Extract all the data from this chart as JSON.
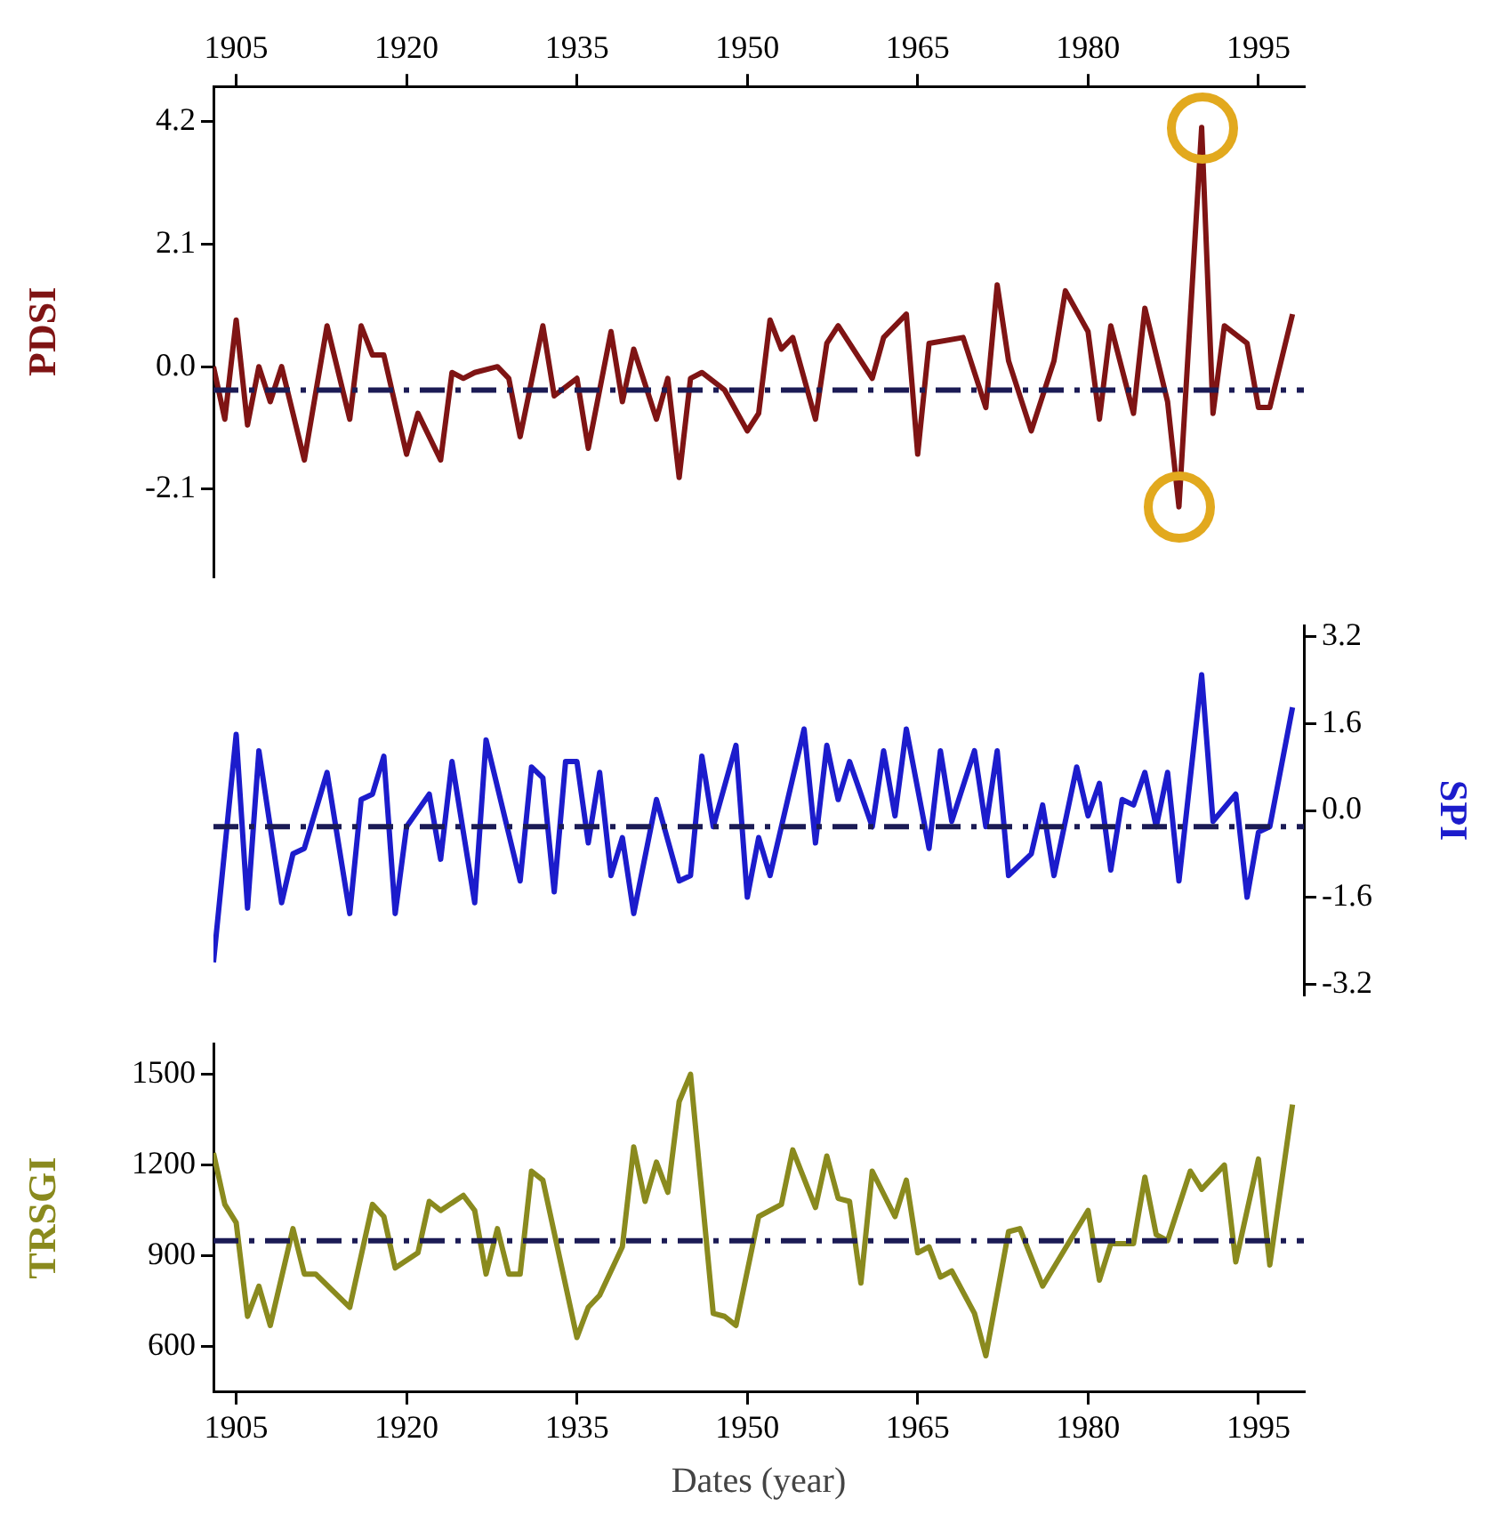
{
  "chart_data": [
    {
      "type": "line",
      "ylabel": "PDSI",
      "xlim": [
        1903,
        1999
      ],
      "xticks": [
        1905,
        1920,
        1935,
        1950,
        1965,
        1980,
        1995
      ],
      "ylim": [
        -3.6,
        4.8
      ],
      "yticks": [
        -2.1,
        {
          "value": 0,
          "label": "0.0"
        },
        2.1,
        4.2
      ],
      "grid": false,
      "series": [
        {
          "color": "#7f1414",
          "x": [
            1903,
            1904,
            1905,
            1906,
            1907,
            1908,
            1909,
            1911,
            1913,
            1915,
            1916,
            1917,
            1918,
            1920,
            1921,
            1923,
            1924,
            1925,
            1926,
            1928,
            1929,
            1930,
            1932,
            1933,
            1935,
            1936,
            1938,
            1939,
            1940,
            1942,
            1943,
            1944,
            1945,
            1946,
            1948,
            1950,
            1951,
            1952,
            1953,
            1954,
            1956,
            1957,
            1958,
            1961,
            1962,
            1964,
            1965,
            1966,
            1969,
            1971,
            1972,
            1973,
            1975,
            1977,
            1978,
            1980,
            1981,
            1982,
            1984,
            1985,
            1987,
            1988,
            1990,
            1991,
            1992,
            1994,
            1995,
            1996,
            1998
          ],
          "values": [
            0.0,
            -0.9,
            0.8,
            -1.0,
            0.0,
            -0.6,
            0.0,
            -1.6,
            0.7,
            -0.9,
            0.7,
            0.2,
            0.2,
            -1.5,
            -0.8,
            -1.6,
            -0.1,
            -0.2,
            -0.1,
            0.0,
            -0.2,
            -1.2,
            0.7,
            -0.5,
            -0.2,
            -1.4,
            0.6,
            -0.6,
            0.3,
            -0.9,
            -0.2,
            -1.9,
            -0.2,
            -0.1,
            -0.4,
            -1.1,
            -0.8,
            0.8,
            0.3,
            0.5,
            -0.9,
            0.4,
            0.7,
            -0.2,
            0.5,
            0.9,
            -1.5,
            0.4,
            0.5,
            -0.7,
            1.4,
            0.1,
            -1.1,
            0.1,
            1.3,
            0.6,
            -0.9,
            0.7,
            -0.8,
            1.0,
            -0.6,
            -2.4,
            4.1,
            -0.8,
            0.7,
            0.4,
            -0.7,
            -0.7,
            0.9
          ]
        }
      ],
      "ref_lines": [
        {
          "axis": "y",
          "value": -0.4,
          "color": "#1b1b55",
          "line_style": "dashed"
        }
      ]
    },
    {
      "type": "line",
      "y2label": "SPI",
      "xlim": [
        1903,
        1999
      ],
      "y2lim": [
        -3.4,
        3.4
      ],
      "y2ticks": [
        -3.2,
        -1.6,
        {
          "value": 0,
          "label": "0.0"
        },
        1.6,
        3.2
      ],
      "grid": false,
      "tick_labels": "y",
      "series": [
        {
          "color": "#1c1ccc",
          "axis": "y2",
          "x": [
            1903,
            1905,
            1906,
            1907,
            1909,
            1910,
            1911,
            1913,
            1915,
            1916,
            1917,
            1918,
            1919,
            1920,
            1922,
            1923,
            1924,
            1926,
            1927,
            1930,
            1931,
            1932,
            1933,
            1934,
            1935,
            1936,
            1937,
            1938,
            1939,
            1940,
            1942,
            1944,
            1945,
            1946,
            1947,
            1949,
            1950,
            1951,
            1952,
            1955,
            1956,
            1957,
            1958,
            1959,
            1961,
            1962,
            1963,
            1964,
            1966,
            1967,
            1968,
            1970,
            1971,
            1972,
            1973,
            1975,
            1976,
            1977,
            1979,
            1980,
            1981,
            1982,
            1983,
            1984,
            1985,
            1986,
            1987,
            1988,
            1990,
            1991,
            1993,
            1994,
            1995,
            1996,
            1998
          ],
          "values": [
            -2.8,
            1.4,
            -1.8,
            1.1,
            -1.7,
            -0.8,
            -0.7,
            0.7,
            -1.9,
            0.2,
            0.3,
            1.0,
            -1.9,
            -0.3,
            0.3,
            -0.9,
            0.9,
            -1.7,
            1.3,
            -1.3,
            0.8,
            0.6,
            -1.5,
            0.9,
            0.9,
            -0.6,
            0.7,
            -1.2,
            -0.5,
            -1.9,
            0.2,
            -1.3,
            -1.2,
            1.0,
            -0.3,
            1.2,
            -1.6,
            -0.5,
            -1.2,
            1.5,
            -0.6,
            1.2,
            0.2,
            0.9,
            -0.3,
            1.1,
            -0.1,
            1.5,
            -0.7,
            1.1,
            -0.2,
            1.1,
            -0.3,
            1.1,
            -1.2,
            -0.8,
            0.1,
            -1.2,
            0.8,
            -0.1,
            0.5,
            -1.1,
            0.2,
            0.1,
            0.7,
            -0.3,
            0.7,
            -1.3,
            2.5,
            -0.2,
            0.3,
            -1.6,
            -0.4,
            -0.3,
            1.9
          ]
        }
      ],
      "ref_lines": [
        {
          "axis": "y2",
          "value": -0.3,
          "color": "#1b1b55",
          "line_style": "dashed"
        }
      ]
    },
    {
      "type": "line",
      "ylabel": "TRSGI",
      "xlabel": "Dates (year)",
      "xlim": [
        1903,
        1999
      ],
      "xticks": [
        1905,
        1920,
        1935,
        1950,
        1965,
        1980,
        1995
      ],
      "ylim": [
        450,
        1600
      ],
      "yticks": [
        600,
        900,
        1200,
        1500
      ],
      "grid": false,
      "series": [
        {
          "color": "#8a8a1e",
          "x": [
            1903,
            1904,
            1905,
            1906,
            1907,
            1908,
            1910,
            1911,
            1912,
            1915,
            1917,
            1918,
            1919,
            1921,
            1922,
            1923,
            1925,
            1926,
            1927,
            1928,
            1929,
            1930,
            1931,
            1932,
            1935,
            1936,
            1937,
            1939,
            1940,
            1941,
            1942,
            1943,
            1944,
            1945,
            1947,
            1948,
            1949,
            1951,
            1953,
            1954,
            1956,
            1957,
            1958,
            1959,
            1960,
            1961,
            1963,
            1964,
            1965,
            1966,
            1967,
            1968,
            1970,
            1971,
            1973,
            1974,
            1976,
            1980,
            1981,
            1982,
            1984,
            1985,
            1986,
            1987,
            1989,
            1990,
            1992,
            1993,
            1995,
            1996,
            1998
          ],
          "values": [
            1240,
            1070,
            1010,
            700,
            800,
            670,
            990,
            840,
            840,
            730,
            1070,
            1030,
            860,
            910,
            1080,
            1050,
            1100,
            1050,
            840,
            990,
            840,
            840,
            1180,
            1150,
            630,
            730,
            770,
            930,
            1260,
            1080,
            1210,
            1110,
            1410,
            1500,
            710,
            700,
            670,
            1030,
            1070,
            1250,
            1060,
            1230,
            1090,
            1080,
            810,
            1180,
            1030,
            1150,
            910,
            930,
            830,
            850,
            710,
            570,
            980,
            990,
            800,
            1050,
            820,
            940,
            940,
            1160,
            970,
            950,
            1180,
            1120,
            1200,
            880,
            1220,
            870,
            1400
          ]
        }
      ],
      "ref_lines": [
        {
          "axis": "y",
          "value": 950,
          "color": "#1b1b55",
          "line_style": "dashed"
        }
      ]
    }
  ]
}
